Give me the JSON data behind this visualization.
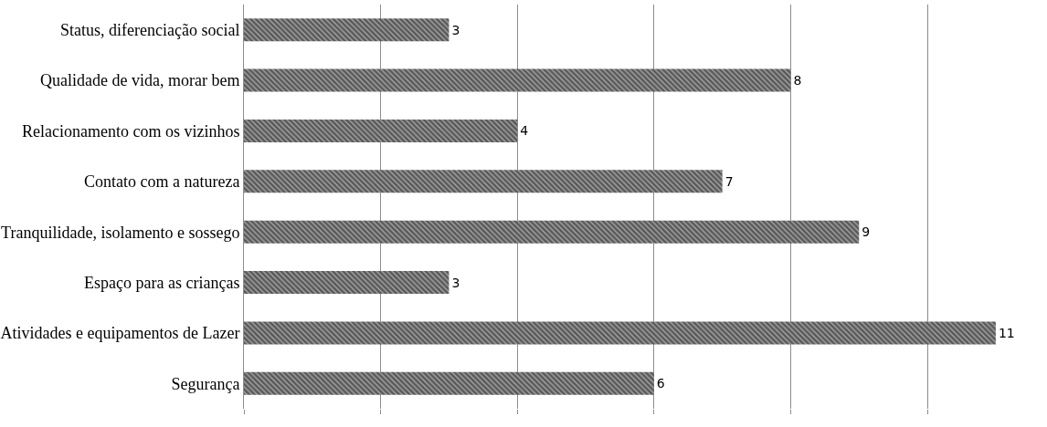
{
  "chart_data": {
    "type": "bar",
    "orientation": "horizontal",
    "categories": [
      "Status, diferenciação social",
      "Qualidade de vida, morar bem",
      "Relacionamento com os vizinhos",
      "Contato com a natureza",
      "Tranquilidade, isolamento e sossego",
      "Espaço para as crianças",
      "Atividades e equipamentos de Lazer",
      "Segurança"
    ],
    "values": [
      3,
      8,
      4,
      7,
      9,
      3,
      11,
      6
    ],
    "color": "#5a5a5a",
    "data_labels": true,
    "grid": "x",
    "tick_labels": "y",
    "xlim": [
      0,
      11.75
    ],
    "xticks": [
      {
        "value": 0,
        "label": null
      },
      {
        "value": 2,
        "label": null
      },
      {
        "value": 4,
        "label": null
      },
      {
        "value": 6,
        "label": null
      },
      {
        "value": 8,
        "label": null
      },
      {
        "value": 10,
        "label": null
      }
    ]
  }
}
